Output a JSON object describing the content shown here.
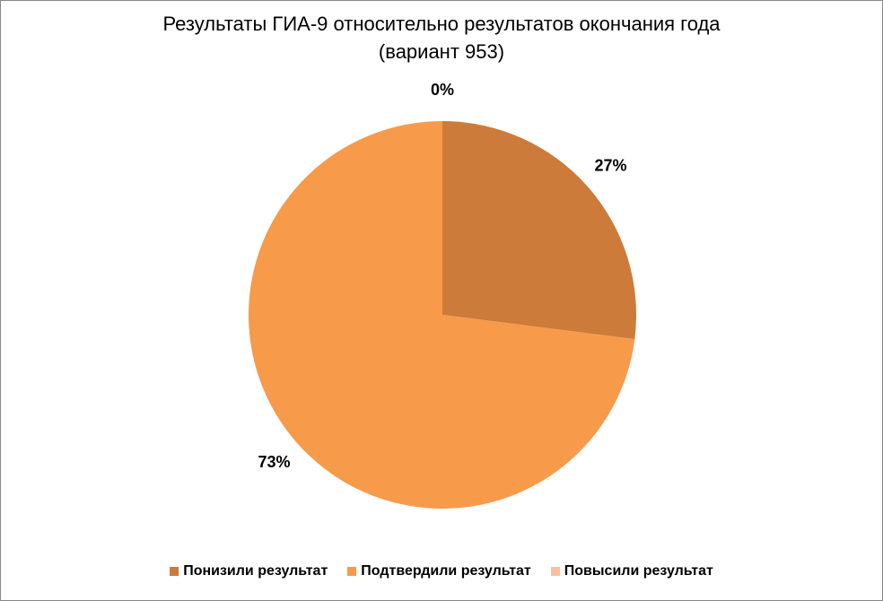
{
  "chart_data": {
    "type": "pie",
    "title": "Результаты ГИА-9 относительно результатов окончания года",
    "subtitle": "(вариант 953)",
    "categories": [
      "Понизили результат",
      "Подтвердили результат",
      "Повысили результат"
    ],
    "values": [
      27,
      73,
      0
    ],
    "value_labels": [
      "27%",
      "73%",
      "0%"
    ],
    "colors": [
      "#cd7b3a",
      "#f79a4a",
      "#f8c0a0"
    ],
    "legend": "bottom"
  }
}
